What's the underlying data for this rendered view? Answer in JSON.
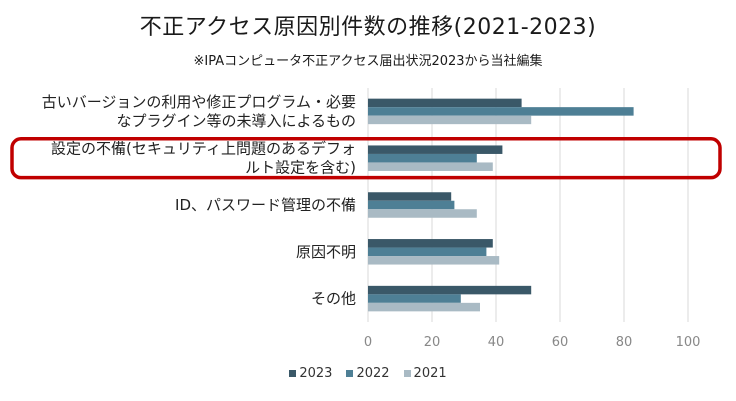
{
  "chart_data": {
    "type": "bar",
    "orientation": "horizontal",
    "title": "不正アクセス原因別件数の推移(2021-2023)",
    "subtitle": "※IPAコンピュータ不正アクセス届出状況2023から当社編集",
    "categories": [
      [
        "古いバージョンの利用や修正プログラム・必要",
        "なプラグイン等の未導入によるもの"
      ],
      [
        "設定の不備(セキュリティ上問題のあるデフォ",
        "ルト設定を含む)"
      ],
      [
        "ID、パスワード管理の不備"
      ],
      [
        "原因不明"
      ],
      [
        "その他"
      ]
    ],
    "series": [
      {
        "name": "2023",
        "color": "#3a5868",
        "values": [
          48,
          42,
          26,
          39,
          51
        ]
      },
      {
        "name": "2022",
        "color": "#4e7f95",
        "values": [
          83,
          34,
          27,
          37,
          29
        ]
      },
      {
        "name": "2021",
        "color": "#a9bac4",
        "values": [
          51,
          39,
          34,
          41,
          35
        ]
      }
    ],
    "xlim": [
      0,
      100
    ],
    "xticks": [
      0,
      20,
      40,
      60,
      80,
      100
    ],
    "grid": true,
    "legend_position": "bottom",
    "highlighted_category_index": 1,
    "highlight_color": "#c00000"
  }
}
